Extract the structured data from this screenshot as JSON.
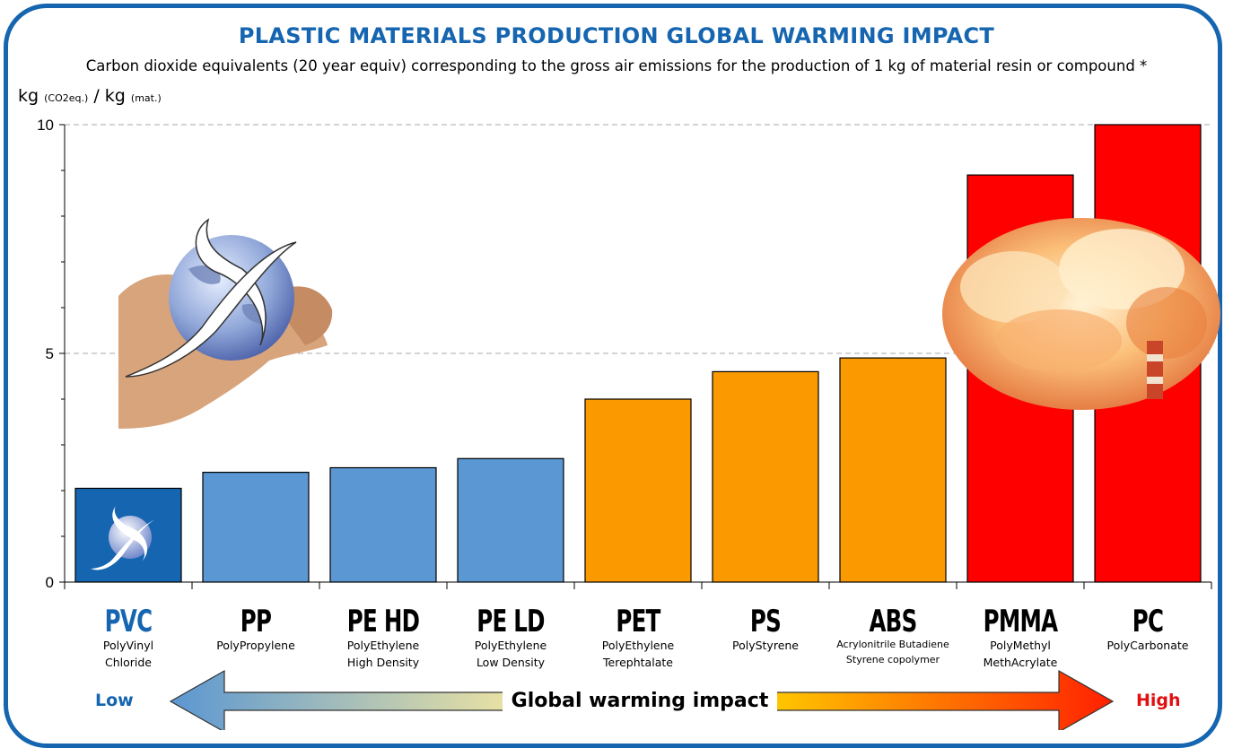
{
  "title": "PLASTIC MATERIALS PRODUCTION GLOBAL WARMING IMPACT",
  "subtitle": "Carbon dioxide equivalents (20 year equiv) corresponding to the gross air emissions for the production of 1 kg of material resin or compound *",
  "y_unit": {
    "main1": "kg",
    "sub1": "(CO2eq.)",
    "sep": "/",
    "main2": "kg",
    "sub2": "(mat.)"
  },
  "scale": {
    "low": "Low",
    "high": "High",
    "label": "Global warming impact"
  },
  "colors": {
    "blue": "#5b97d2",
    "pvc": "#1565b0",
    "orange": "#fb9a00",
    "red": "#ff0000",
    "frame": "#1565b0"
  },
  "images": {
    "left": "hands-holding-globe-logo",
    "right": "smokestack-pollution-cloud",
    "pvc_bar": "globe-logo-icon"
  },
  "categories": [
    {
      "code": "PVC",
      "name1": "PolyVinyl",
      "name2": "Chloride"
    },
    {
      "code": "PP",
      "name1": "PolyPropylene",
      "name2": ""
    },
    {
      "code": "PE HD",
      "name1": "PolyEthylene",
      "name2": "High Density"
    },
    {
      "code": "PE LD",
      "name1": "PolyEthylene",
      "name2": "Low Density"
    },
    {
      "code": "PET",
      "name1": "PolyEthylene",
      "name2": "Terephtalate"
    },
    {
      "code": "PS",
      "name1": "PolyStyrene",
      "name2": ""
    },
    {
      "code": "ABS",
      "name1": "Acrylonitrile Butadiene",
      "name2": "Styrene copolymer"
    },
    {
      "code": "PMMA",
      "name1": "PolyMethyl",
      "name2": "MethAcrylate"
    },
    {
      "code": "PC",
      "name1": "PolyCarbonate",
      "name2": ""
    }
  ],
  "chart_data": {
    "type": "bar",
    "title": "PLASTIC MATERIALS PRODUCTION GLOBAL WARMING IMPACT",
    "ylabel": "kg (CO2eq.) / kg (mat.)",
    "categories": [
      "PVC",
      "PP",
      "PE HD",
      "PE LD",
      "PET",
      "PS",
      "ABS",
      "PMMA",
      "PC"
    ],
    "values": [
      2.05,
      2.4,
      2.5,
      2.7,
      4.0,
      4.6,
      4.9,
      8.9,
      10.0
    ],
    "bar_colors": [
      "#1565b0",
      "#5b97d2",
      "#5b97d2",
      "#5b97d2",
      "#fb9a00",
      "#fb9a00",
      "#fb9a00",
      "#ff0000",
      "#ff0000"
    ],
    "ylim": [
      0,
      10
    ],
    "yticks": [
      0,
      5,
      10
    ],
    "grid": "dashed horizontal at 5 and 10",
    "legend": "none"
  }
}
